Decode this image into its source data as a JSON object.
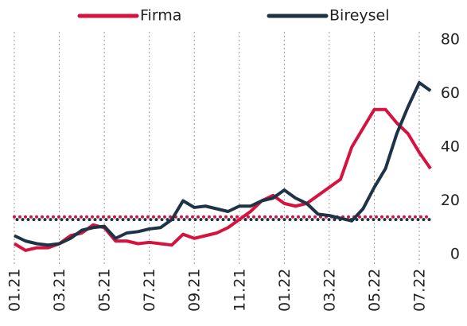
{
  "chart_data": {
    "type": "line",
    "categories": [
      "01.21",
      null,
      null,
      null,
      "03.21",
      null,
      null,
      null,
      "05.21",
      null,
      null,
      null,
      "07.21",
      null,
      null,
      null,
      "09.21",
      null,
      null,
      null,
      "11.21",
      null,
      null,
      null,
      "01.22",
      null,
      null,
      null,
      "03.22",
      null,
      null,
      null,
      "05.22",
      null,
      null,
      null,
      "07.22",
      null
    ],
    "series": [
      {
        "name": "Firma",
        "color": "#d5133e",
        "values": [
          4,
          1.5,
          2.5,
          2.5,
          4,
          7,
          8,
          11,
          10,
          5,
          5,
          4,
          4.5,
          4,
          3.5,
          7.5,
          6,
          7,
          8,
          10,
          13,
          16,
          20,
          22,
          19,
          18,
          19,
          22,
          25,
          28,
          40,
          47,
          54,
          54,
          49,
          45,
          38,
          32
        ]
      },
      {
        "name": "Bireysel",
        "color": "#1f3347",
        "values": [
          7,
          5,
          4,
          3.5,
          4,
          6,
          9,
          10,
          10.5,
          6,
          8,
          8.5,
          9.5,
          10,
          13,
          20,
          17.5,
          18,
          17,
          16,
          18,
          18,
          20,
          21,
          24,
          21,
          19,
          15,
          14.5,
          13.5,
          12.5,
          17,
          25,
          32,
          45,
          55,
          64,
          61
        ]
      }
    ],
    "reference_lines": [
      {
        "color": "#d5133e",
        "value": 14
      },
      {
        "color": "#1f3347",
        "value": 13
      }
    ],
    "ylim": [
      0,
      80
    ],
    "yticks": [
      0,
      20,
      40,
      60,
      80
    ],
    "y_axis_side": "right",
    "grid": "vertical",
    "legend": "top"
  }
}
